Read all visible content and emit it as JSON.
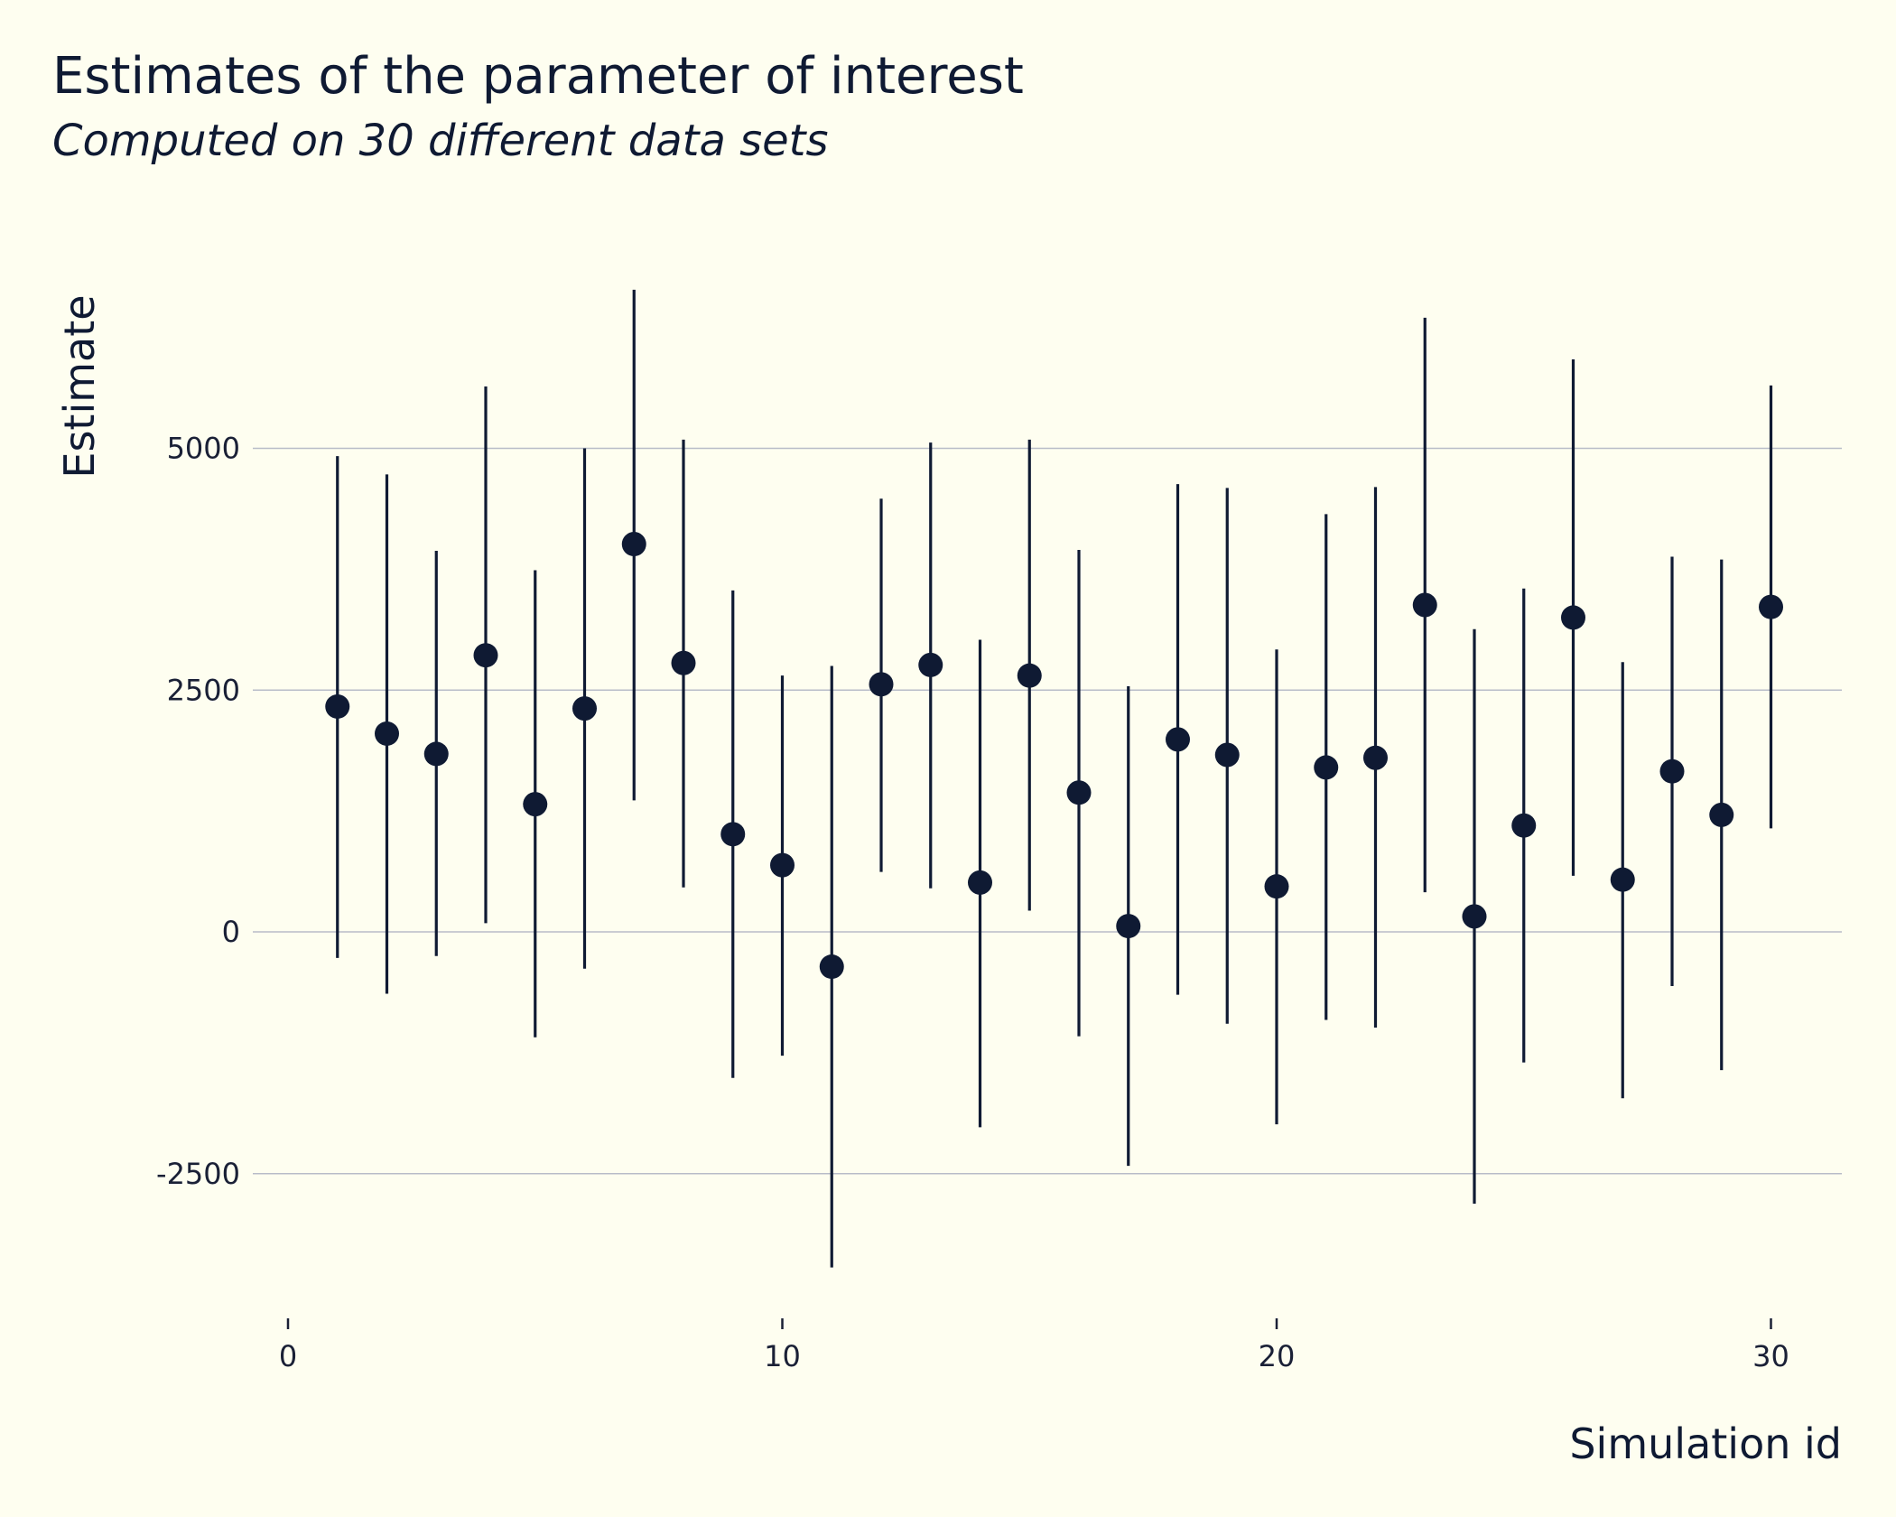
{
  "chart_data": {
    "type": "scatter",
    "title": "Estimates of the parameter of interest",
    "subtitle": "Computed on 30 different data sets",
    "xlabel": "Simulation id",
    "ylabel": "Estimate",
    "xlim": [
      0,
      31
    ],
    "ylim": [
      -3600,
      6700
    ],
    "xticks": [
      "0",
      "10",
      "20",
      "30"
    ],
    "yticks": [
      "5000",
      "2500",
      "0",
      "-2500"
    ],
    "grid": "horizontal",
    "point_color": "#0f1a33",
    "grid_color": "#b8bcc8",
    "points": [
      {
        "x": 1,
        "y": 2330,
        "lower": -270,
        "upper": 4920
      },
      {
        "x": 2,
        "y": 2050,
        "lower": -640,
        "upper": 4730
      },
      {
        "x": 3,
        "y": 1840,
        "lower": -250,
        "upper": 3940
      },
      {
        "x": 4,
        "y": 2860,
        "lower": 90,
        "upper": 5640
      },
      {
        "x": 5,
        "y": 1320,
        "lower": -1090,
        "upper": 3740
      },
      {
        "x": 6,
        "y": 2310,
        "lower": -380,
        "upper": 5000
      },
      {
        "x": 7,
        "y": 4010,
        "lower": 1360,
        "upper": 6640
      },
      {
        "x": 8,
        "y": 2780,
        "lower": 460,
        "upper": 5090
      },
      {
        "x": 9,
        "y": 1010,
        "lower": -1510,
        "upper": 3530
      },
      {
        "x": 10,
        "y": 690,
        "lower": -1280,
        "upper": 2650
      },
      {
        "x": 11,
        "y": -360,
        "lower": -3470,
        "upper": 2750
      },
      {
        "x": 12,
        "y": 2560,
        "lower": 620,
        "upper": 4480
      },
      {
        "x": 13,
        "y": 2760,
        "lower": 450,
        "upper": 5060
      },
      {
        "x": 14,
        "y": 510,
        "lower": -2020,
        "upper": 3020
      },
      {
        "x": 15,
        "y": 2650,
        "lower": 220,
        "upper": 5090
      },
      {
        "x": 16,
        "y": 1440,
        "lower": -1080,
        "upper": 3950
      },
      {
        "x": 17,
        "y": 60,
        "lower": -2420,
        "upper": 2540
      },
      {
        "x": 18,
        "y": 1990,
        "lower": -650,
        "upper": 4630
      },
      {
        "x": 19,
        "y": 1830,
        "lower": -950,
        "upper": 4590
      },
      {
        "x": 20,
        "y": 470,
        "lower": -1990,
        "upper": 2920
      },
      {
        "x": 21,
        "y": 1700,
        "lower": -910,
        "upper": 4320
      },
      {
        "x": 22,
        "y": 1800,
        "lower": -990,
        "upper": 4600
      },
      {
        "x": 23,
        "y": 3380,
        "lower": 410,
        "upper": 6350
      },
      {
        "x": 24,
        "y": 160,
        "lower": -2810,
        "upper": 3130
      },
      {
        "x": 25,
        "y": 1100,
        "lower": -1350,
        "upper": 3550
      },
      {
        "x": 26,
        "y": 3250,
        "lower": 580,
        "upper": 5920
      },
      {
        "x": 27,
        "y": 540,
        "lower": -1720,
        "upper": 2790
      },
      {
        "x": 28,
        "y": 1660,
        "lower": -560,
        "upper": 3880
      },
      {
        "x": 29,
        "y": 1210,
        "lower": -1430,
        "upper": 3850
      },
      {
        "x": 30,
        "y": 3360,
        "lower": 1070,
        "upper": 5650
      }
    ]
  }
}
